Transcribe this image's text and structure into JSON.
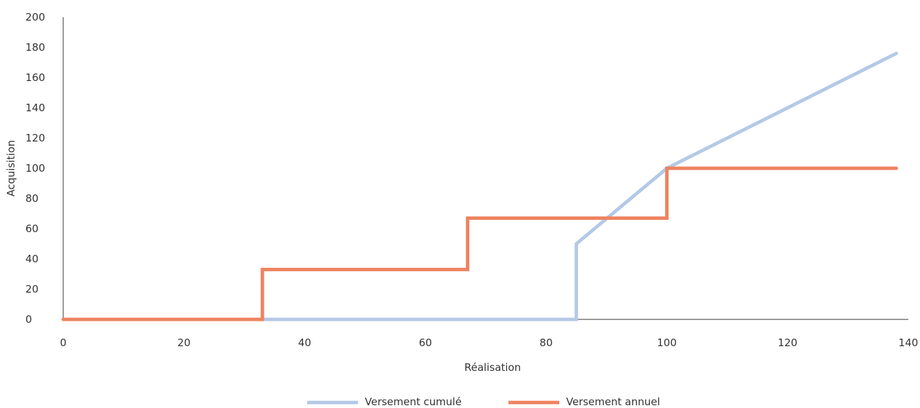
{
  "chart_data": {
    "type": "line",
    "title": "",
    "xlabel": "Réalisation",
    "ylabel": "Acquisition",
    "xlim": [
      0,
      140
    ],
    "ylim": [
      0,
      200
    ],
    "xticks": [
      0,
      20,
      40,
      60,
      80,
      100,
      120,
      140
    ],
    "yticks": [
      0,
      20,
      40,
      60,
      80,
      100,
      120,
      140,
      160,
      180,
      200
    ],
    "grid": false,
    "legend_position": "bottom",
    "series": [
      {
        "name": "Versement cumulé",
        "color": "#b4c9e7",
        "points": [
          [
            0,
            0
          ],
          [
            85,
            0
          ],
          [
            85,
            50
          ],
          [
            100,
            100
          ],
          [
            138,
            176
          ]
        ]
      },
      {
        "name": "Versement annuel",
        "color": "#ee8360",
        "points": [
          [
            0,
            0
          ],
          [
            33,
            0
          ],
          [
            33,
            33
          ],
          [
            67,
            33
          ],
          [
            67,
            67
          ],
          [
            100,
            67
          ],
          [
            100,
            100
          ],
          [
            138,
            100
          ]
        ]
      }
    ]
  }
}
